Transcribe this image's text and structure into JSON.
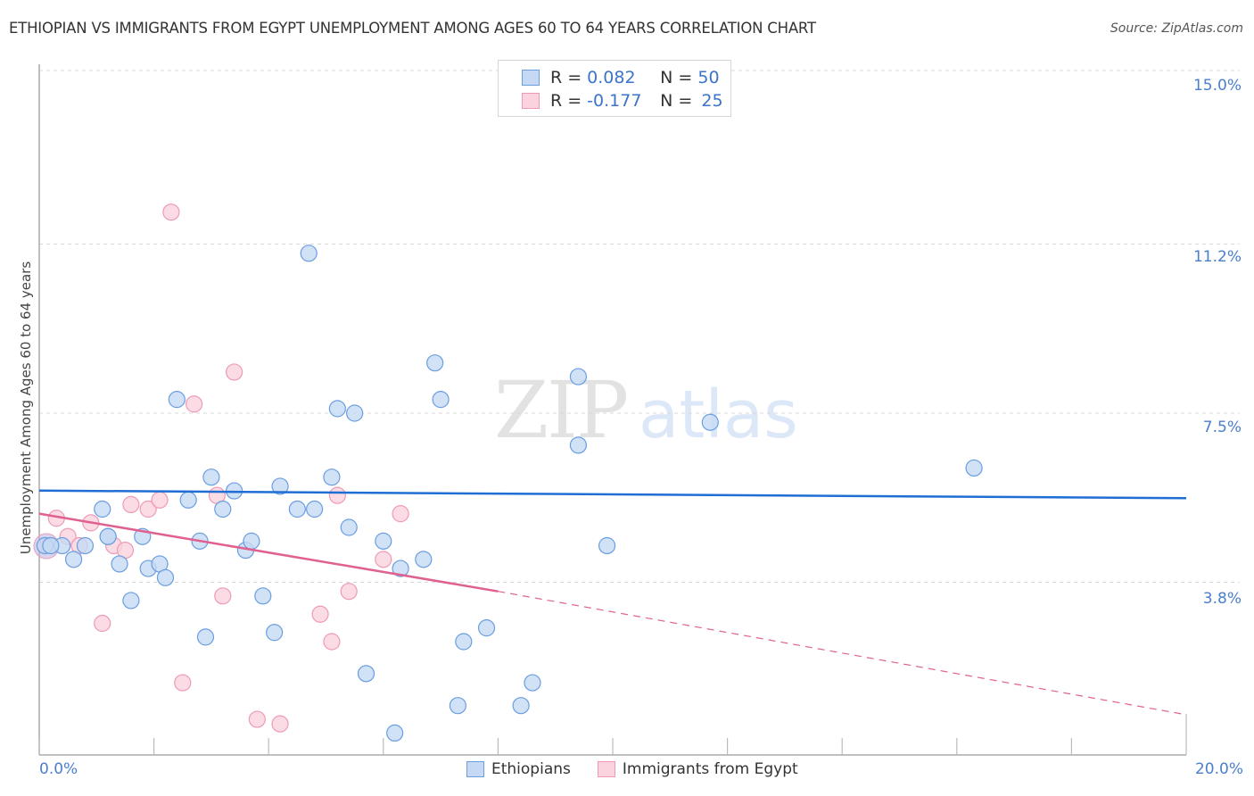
{
  "header": {
    "title": "ETHIOPIAN VS IMMIGRANTS FROM EGYPT UNEMPLOYMENT AMONG AGES 60 TO 64 YEARS CORRELATION CHART",
    "source": "Source: ZipAtlas.com"
  },
  "legend": {
    "rows": [
      {
        "r_label": "R = ",
        "r_value": "0.082",
        "n_label": "N = ",
        "n_value": "50",
        "color": "#a8c8f0"
      },
      {
        "r_label": "R = ",
        "r_value": "-0.177",
        "n_label": "N = ",
        "n_value": "25",
        "color": "#f7bcd0"
      }
    ],
    "bottom": [
      {
        "label": "Ethiopians"
      },
      {
        "label": "Immigrants from Egypt"
      }
    ]
  },
  "axes": {
    "y_ticks": [
      "15.0%",
      "11.2%",
      "7.5%",
      "3.8%"
    ],
    "x_min_label": "0.0%",
    "x_max_label": "20.0%"
  },
  "watermark": {
    "zip": "ZIP",
    "atlas": "atlas"
  },
  "colors": {
    "blue_fill": "#c5d9f4",
    "blue_stroke": "#6a9ee0",
    "blue_line": "#1f6ed4",
    "pink_fill": "#fad3df",
    "pink_stroke": "#ee9ab5",
    "pink_line": "#e06090",
    "tick_label": "#4a7fcc"
  },
  "chart_data": {
    "type": "scatter",
    "title": "ETHIOPIAN VS IMMIGRANTS FROM EGYPT UNEMPLOYMENT AMONG AGES 60 TO 64 YEARS CORRELATION CHART",
    "xlabel": "",
    "ylabel": "Unemployment Among Ages 60 to 64 years",
    "xlim": [
      0,
      20
    ],
    "ylim": [
      0,
      15
    ],
    "x_unit": "%",
    "y_unit": "%",
    "y_ticks": [
      3.8,
      7.5,
      11.2,
      15.0
    ],
    "grid": "horizontal dashed",
    "legend_position": "top-center and bottom",
    "series": [
      {
        "name": "Ethiopians",
        "R": 0.082,
        "N": 50,
        "trend": {
          "x": [
            0,
            20
          ],
          "y": [
            5.2,
            5.6
          ]
        },
        "points": [
          [
            0.1,
            4.6
          ],
          [
            0.4,
            4.6
          ],
          [
            0.6,
            4.3
          ],
          [
            0.8,
            4.6
          ],
          [
            1.1,
            5.4
          ],
          [
            1.2,
            4.8
          ],
          [
            1.2,
            4.8
          ],
          [
            1.4,
            4.2
          ],
          [
            1.6,
            3.4
          ],
          [
            1.8,
            4.8
          ],
          [
            1.9,
            4.1
          ],
          [
            2.1,
            4.2
          ],
          [
            2.2,
            3.9
          ],
          [
            2.4,
            7.8
          ],
          [
            2.6,
            5.6
          ],
          [
            2.8,
            4.7
          ],
          [
            2.9,
            2.6
          ],
          [
            3.0,
            6.1
          ],
          [
            3.2,
            5.4
          ],
          [
            3.4,
            5.8
          ],
          [
            3.6,
            4.5
          ],
          [
            3.7,
            4.7
          ],
          [
            3.9,
            3.5
          ],
          [
            4.1,
            2.7
          ],
          [
            4.2,
            5.9
          ],
          [
            4.5,
            5.4
          ],
          [
            4.7,
            11.0
          ],
          [
            4.8,
            5.4
          ],
          [
            5.1,
            6.1
          ],
          [
            5.2,
            7.6
          ],
          [
            5.4,
            5.0
          ],
          [
            5.5,
            7.5
          ],
          [
            5.7,
            1.8
          ],
          [
            6.0,
            4.7
          ],
          [
            6.2,
            0.5
          ],
          [
            6.3,
            4.1
          ],
          [
            6.7,
            4.3
          ],
          [
            6.9,
            8.6
          ],
          [
            7.0,
            7.8
          ],
          [
            7.3,
            1.1
          ],
          [
            7.4,
            2.5
          ],
          [
            7.8,
            2.8
          ],
          [
            8.4,
            1.1
          ],
          [
            8.6,
            1.6
          ],
          [
            9.4,
            8.3
          ],
          [
            9.4,
            6.8
          ],
          [
            9.9,
            4.6
          ],
          [
            11.7,
            7.3
          ],
          [
            16.3,
            6.3
          ],
          [
            0.2,
            4.6
          ]
        ]
      },
      {
        "name": "Immigrants from Egypt",
        "R": -0.177,
        "N": 25,
        "trend": {
          "x": [
            0,
            8
          ],
          "y": [
            5.3,
            3.6
          ],
          "dashed_extension": {
            "x": [
              8,
              20
            ],
            "y": [
              3.6,
              0.9
            ]
          }
        },
        "points": [
          [
            0.1,
            4.6
          ],
          [
            0.3,
            5.2
          ],
          [
            0.5,
            4.8
          ],
          [
            0.7,
            4.6
          ],
          [
            0.9,
            5.1
          ],
          [
            1.1,
            2.9
          ],
          [
            1.3,
            4.6
          ],
          [
            1.5,
            4.5
          ],
          [
            1.6,
            5.5
          ],
          [
            1.9,
            5.4
          ],
          [
            2.1,
            5.6
          ],
          [
            2.3,
            11.9
          ],
          [
            2.5,
            1.6
          ],
          [
            2.7,
            7.7
          ],
          [
            3.1,
            5.7
          ],
          [
            3.2,
            3.5
          ],
          [
            3.4,
            8.4
          ],
          [
            3.8,
            0.8
          ],
          [
            4.2,
            0.7
          ],
          [
            4.9,
            3.1
          ],
          [
            5.1,
            2.5
          ],
          [
            5.2,
            5.7
          ],
          [
            5.4,
            3.6
          ],
          [
            6.0,
            4.3
          ],
          [
            6.3,
            5.3
          ]
        ]
      }
    ]
  }
}
